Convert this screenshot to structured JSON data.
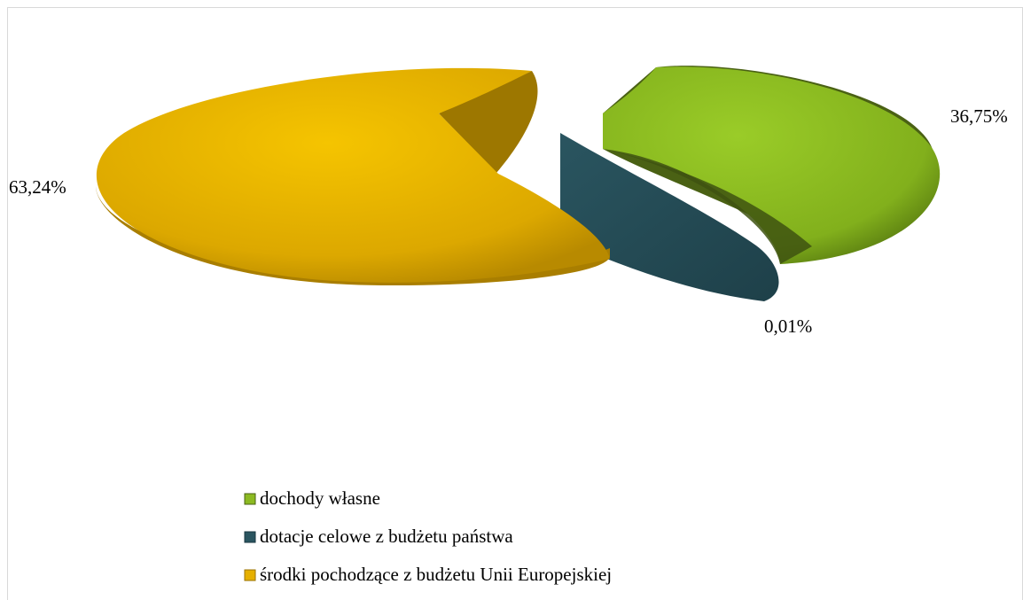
{
  "chart_data": {
    "type": "pie",
    "title": "",
    "series": [
      {
        "name": "",
        "slices": [
          {
            "label": "dochody własne",
            "value": 36.75,
            "display": "36,75%",
            "color": "#8cba22",
            "side_color": "#4a6114"
          },
          {
            "label": "dotacje celowe z budżetu państwa",
            "value": 0.01,
            "display": "0,01%",
            "color": "#234a55",
            "side_color": "#1a3740"
          },
          {
            "label": "środki pochodzące z budżetu Unii Europejskiej",
            "value": 63.24,
            "display": "63,24%",
            "color": "#e6b000",
            "side_color": "#9a7200"
          }
        ]
      }
    ],
    "legend_position": "bottom",
    "style": "3d-exploded"
  }
}
